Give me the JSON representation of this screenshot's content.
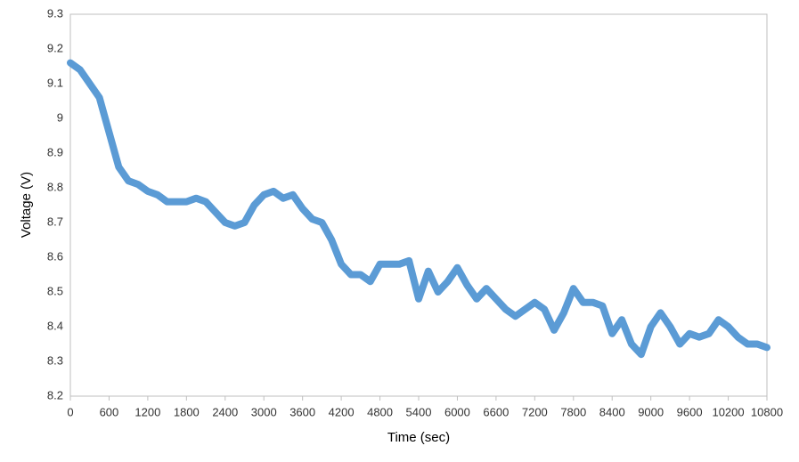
{
  "chart_data": {
    "type": "line",
    "x_label": "Time (sec)",
    "y_label": "Voltage (V)",
    "x": [
      0,
      150,
      300,
      450,
      600,
      750,
      900,
      1050,
      1200,
      1350,
      1500,
      1650,
      1800,
      1950,
      2100,
      2250,
      2400,
      2550,
      2700,
      2850,
      3000,
      3150,
      3300,
      3450,
      3600,
      3750,
      3900,
      4050,
      4200,
      4350,
      4500,
      4650,
      4800,
      4950,
      5100,
      5250,
      5400,
      5550,
      5700,
      5850,
      6000,
      6150,
      6300,
      6450,
      6600,
      6750,
      6900,
      7050,
      7200,
      7350,
      7500,
      7650,
      7800,
      7950,
      8100,
      8250,
      8400,
      8550,
      8700,
      8850,
      9000,
      9150,
      9300,
      9450,
      9600,
      9750,
      9900,
      10050,
      10200,
      10350,
      10500,
      10650,
      10800
    ],
    "values": [
      9.16,
      9.14,
      9.1,
      9.06,
      8.96,
      8.86,
      8.82,
      8.81,
      8.79,
      8.78,
      8.76,
      8.76,
      8.76,
      8.77,
      8.76,
      8.73,
      8.7,
      8.69,
      8.7,
      8.75,
      8.78,
      8.79,
      8.77,
      8.78,
      8.74,
      8.71,
      8.7,
      8.65,
      8.58,
      8.55,
      8.55,
      8.53,
      8.58,
      8.58,
      8.58,
      8.59,
      8.48,
      8.56,
      8.5,
      8.53,
      8.57,
      8.52,
      8.48,
      8.51,
      8.48,
      8.45,
      8.43,
      8.45,
      8.47,
      8.45,
      8.39,
      8.44,
      8.51,
      8.47,
      8.47,
      8.46,
      8.38,
      8.42,
      8.35,
      8.32,
      8.4,
      8.44,
      8.4,
      8.35,
      8.38,
      8.37,
      8.38,
      8.42,
      8.4,
      8.37,
      8.35,
      8.35,
      8.34
    ],
    "color": "#5b9bd5",
    "xlim": [
      0,
      10800
    ],
    "xticks": [
      0,
      600,
      1200,
      1800,
      2400,
      3000,
      3600,
      4200,
      4800,
      5400,
      6000,
      6600,
      7200,
      7800,
      8400,
      9000,
      9600,
      10200,
      10800
    ],
    "ylim": [
      8.2,
      9.3
    ],
    "yticks": [
      8.2,
      8.3,
      8.4,
      8.5,
      8.6,
      8.7,
      8.8,
      8.9,
      9,
      9.1,
      9.2,
      9.3
    ],
    "grid": false
  }
}
